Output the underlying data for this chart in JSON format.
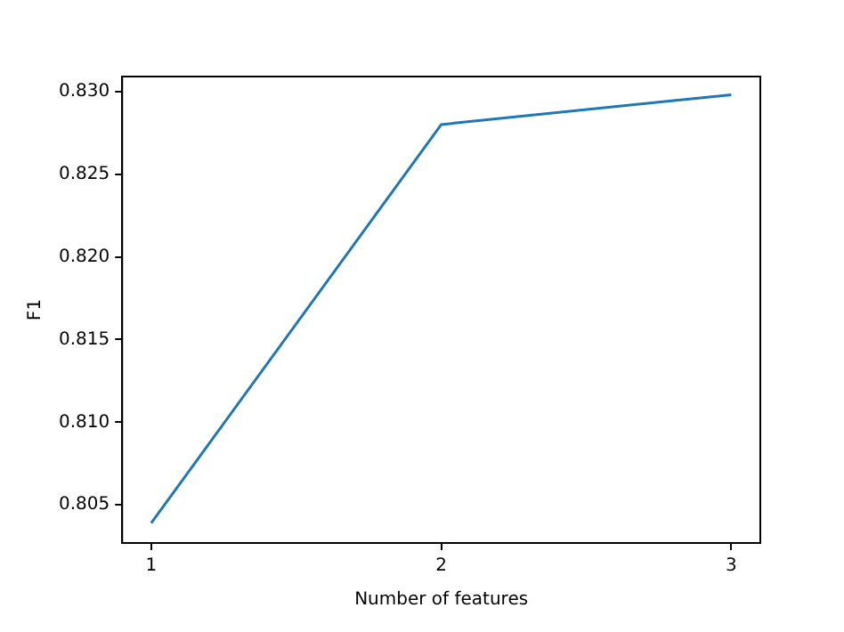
{
  "chart_data": {
    "type": "line",
    "xlabel": "Number of features",
    "ylabel": "F1",
    "x": [
      1,
      2,
      3
    ],
    "series": [
      {
        "color": "#1f77b4",
        "values": [
          0.8039,
          0.828,
          0.8298
        ]
      }
    ],
    "xlim": [
      0.9,
      3.1
    ],
    "xticks": [
      1,
      2,
      3
    ],
    "ylim": [
      0.8027,
      0.8309
    ],
    "yticks": [
      0.805,
      {
        "value": 0.81,
        "label": "0.810"
      },
      0.815,
      {
        "value": 0.82,
        "label": "0.820"
      },
      0.825,
      {
        "value": 0.83,
        "label": "0.830"
      }
    ],
    "grid": false,
    "legend": false,
    "marker": "none",
    "line_style": "solid"
  }
}
